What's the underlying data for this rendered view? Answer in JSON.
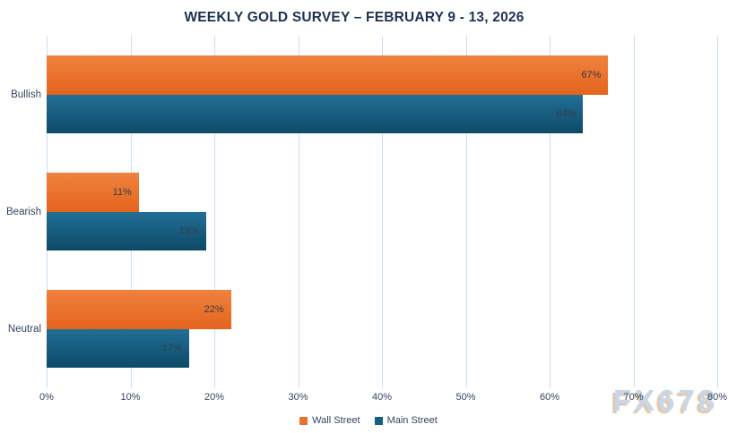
{
  "title": "WEEKLY GOLD SURVEY – FEBRUARY 9 - 13, 2026",
  "watermark": "FX678",
  "legend": [
    {
      "label": "Wall Street",
      "color": "#E97132"
    },
    {
      "label": "Main Street",
      "color": "#156082"
    }
  ],
  "colors": {
    "title_text": "#1e3151",
    "axis_text": "#33455e",
    "data_label_text": "#343c46",
    "gridline": "#c9dff0",
    "background": "#ffffff",
    "watermark_fill": "#c7d6e8",
    "watermark_shadow": "#d6b794"
  },
  "chart_data": {
    "type": "bar",
    "orientation": "horizontal",
    "title": "WEEKLY GOLD SURVEY – FEBRUARY 9 - 13, 2026",
    "categories": [
      "Bullish",
      "Bearish",
      "Neutral"
    ],
    "series": [
      {
        "name": "Wall Street",
        "color": "#E97132",
        "gradient": [
          "#f0823f",
          "#e4641d"
        ],
        "values": [
          67,
          11,
          22
        ],
        "labels": [
          "67%",
          "11%",
          "22%"
        ]
      },
      {
        "name": "Main Street",
        "color": "#156082",
        "gradient": [
          "#226f96",
          "#0d4a68"
        ],
        "values": [
          64,
          19,
          17
        ],
        "labels": [
          "64%",
          "19%",
          "17%"
        ]
      }
    ],
    "xlabel": "",
    "ylabel": "",
    "xlim": [
      0,
      80
    ],
    "xticks": [
      0,
      10,
      20,
      30,
      40,
      50,
      60,
      70,
      80
    ],
    "xtick_labels": [
      "0%",
      "10%",
      "20%",
      "30%",
      "40%",
      "50%",
      "60%",
      "70%",
      "80%"
    ],
    "grid": true,
    "data_labels": "inside-end",
    "legend_position": "bottom"
  }
}
